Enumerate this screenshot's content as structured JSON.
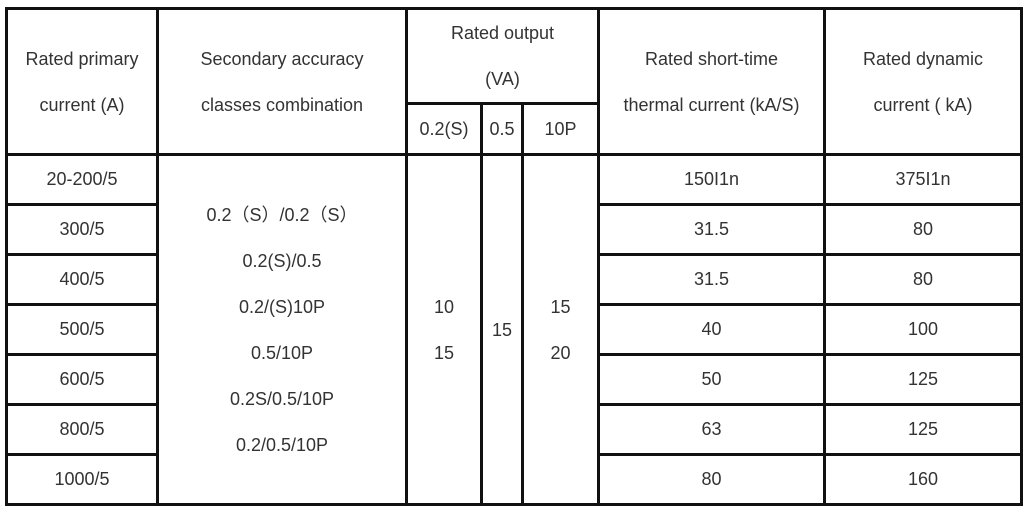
{
  "table": {
    "header": {
      "primary": [
        "Rated primary",
        "current (A)"
      ],
      "accuracy": [
        "Secondary accuracy",
        "classes combination"
      ],
      "output": [
        "Rated output",
        "(VA)"
      ],
      "output_cols": [
        "0.2(S)",
        "0.5",
        "10P"
      ],
      "thermal": [
        "Rated short-time",
        "thermal current (kA/S)"
      ],
      "dynamic": [
        "Rated dynamic",
        "current ( kA)"
      ]
    },
    "rows": [
      {
        "primary": "20-200/5",
        "thermal": "150I1n",
        "dynamic": "375I1n"
      },
      {
        "primary": "300/5",
        "thermal": "31.5",
        "dynamic": "80"
      },
      {
        "primary": "400/5",
        "thermal": "31.5",
        "dynamic": "80"
      },
      {
        "primary": "500/5",
        "thermal": "40",
        "dynamic": "100"
      },
      {
        "primary": "600/5",
        "thermal": "50",
        "dynamic": "125"
      },
      {
        "primary": "800/5",
        "thermal": "63",
        "dynamic": "125"
      },
      {
        "primary": "1000/5",
        "thermal": "80",
        "dynamic": "160"
      }
    ],
    "accuracy_classes": [
      "0.2（S）/0.2（S）",
      "0.2(S)/0.5",
      "0.2/(S)10P",
      "0.5/10P",
      "0.2S/0.5/10P",
      "0.2/0.5/10P"
    ],
    "output_values": [
      [
        "10",
        "15"
      ],
      [
        "15"
      ],
      [
        "15",
        "20"
      ]
    ]
  }
}
